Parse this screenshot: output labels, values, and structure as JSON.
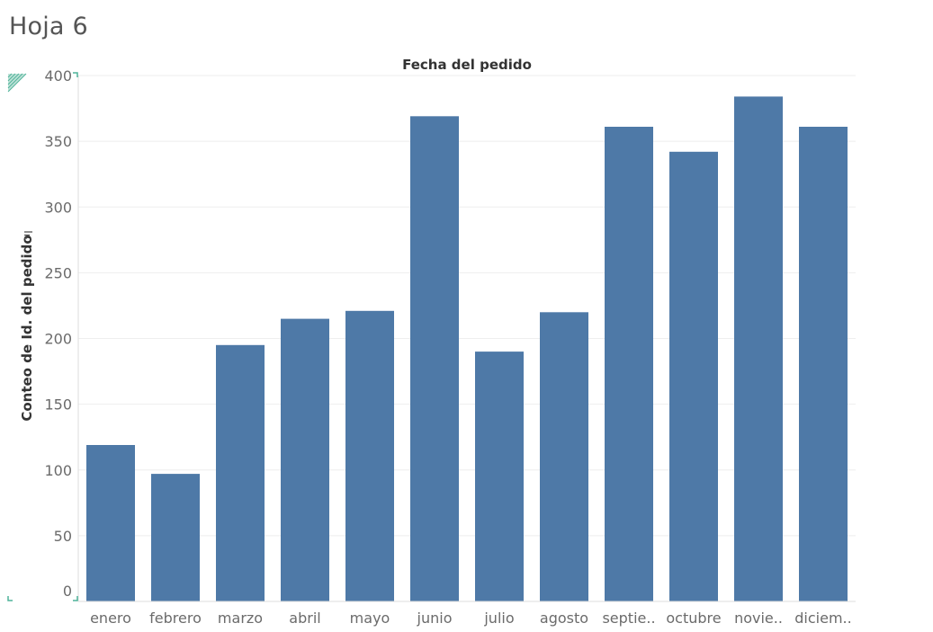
{
  "sheet": {
    "title": "Hoja 6"
  },
  "chart_data": {
    "type": "bar",
    "title": "",
    "column_header": "Fecha del pedido",
    "xlabel": "",
    "ylabel": "Conteo de Id. del pedido",
    "categories": [
      "enero",
      "febrero",
      "marzo",
      "abril",
      "mayo",
      "junio",
      "julio",
      "agosto",
      "septie..",
      "octubre",
      "novie..",
      "diciem.."
    ],
    "values": [
      119,
      97,
      195,
      215,
      221,
      369,
      190,
      220,
      361,
      342,
      384,
      361
    ],
    "ylim": [
      0,
      400
    ],
    "yticks": [
      0,
      50,
      100,
      150,
      200,
      250,
      300,
      350,
      400
    ],
    "grid": true,
    "legend": "none",
    "colors": {
      "bar": "#4e79a7",
      "grid": "#eeeeee",
      "axis": "#dddddd",
      "accent": "#4fb39a"
    }
  },
  "icons": {
    "sort": "sort-icon",
    "corner": "pane-corner-icon"
  }
}
